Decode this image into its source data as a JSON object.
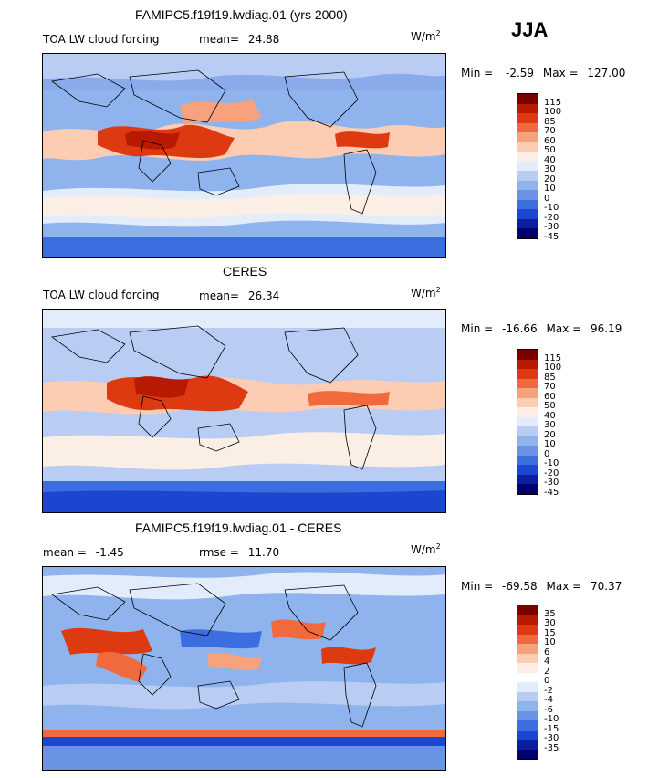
{
  "season": "JJA",
  "colors": {
    "fill12": [
      "#7a0000",
      "#b71a00",
      "#de3a12",
      "#f06a3e",
      "#f7a27c",
      "#fccdb3",
      "#fbeee5",
      "#e3ecfb",
      "#b9cdf4",
      "#8fb3ec",
      "#6a93e4",
      "#3b6ede",
      "#1c46cf",
      "#0a1f9c",
      "#000070"
    ],
    "fill14": [
      "#7a0000",
      "#b71a00",
      "#de3a12",
      "#f06a3e",
      "#f7a27c",
      "#fccdb3",
      "#fbeee5",
      "#ffffff",
      "#e3ecfb",
      "#b9cdf4",
      "#8fb3ec",
      "#6a93e4",
      "#3b6ede",
      "#1c46cf",
      "#0a1f9c",
      "#000070"
    ]
  },
  "panels": [
    {
      "id": "model",
      "title": "FAMIPC5.f19f19.lwdiag.01 (yrs 2000)",
      "field_label": "TOA LW cloud forcing",
      "stat1_label": "mean=",
      "stat1_value": "24.88",
      "units": "W/m",
      "units_exp": "2",
      "min_label": "Min =",
      "min_value": "-2.59",
      "max_label": "Max =",
      "max_value": "127.00",
      "levels": [
        "115",
        "100",
        "85",
        "70",
        "60",
        "50",
        "40",
        "30",
        "20",
        "10",
        "0",
        "-10",
        "-20",
        "-30",
        "-45"
      ]
    },
    {
      "id": "obs",
      "title": "CERES",
      "field_label": "TOA LW cloud forcing",
      "stat1_label": "mean=",
      "stat1_value": "26.34",
      "units": "W/m",
      "units_exp": "2",
      "min_label": "Min =",
      "min_value": "-16.66",
      "max_label": "Max =",
      "max_value": "96.19",
      "levels": [
        "115",
        "100",
        "85",
        "70",
        "60",
        "50",
        "40",
        "30",
        "20",
        "10",
        "0",
        "-10",
        "-20",
        "-30",
        "-45"
      ]
    },
    {
      "id": "diff",
      "title": "FAMIPC5.f19f19.lwdiag.01 - CERES",
      "stat1_label": "mean =",
      "stat1_value": "-1.45",
      "stat2_label": "rmse =",
      "stat2_value": "11.70",
      "units": "W/m",
      "units_exp": "2",
      "min_label": "Min =",
      "min_value": "-69.58",
      "max_label": "Max =",
      "max_value": "70.37",
      "levels": [
        "35",
        "30",
        "15",
        "10",
        "6",
        "4",
        "2",
        "0",
        "-2",
        "-4",
        "-6",
        "-10",
        "-15",
        "-30",
        "-35"
      ]
    }
  ]
}
